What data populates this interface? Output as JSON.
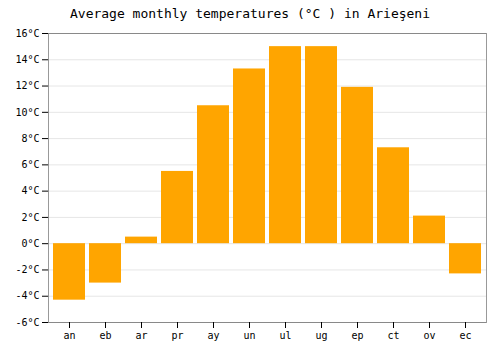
{
  "chart_data": {
    "type": "bar",
    "title": "Average monthly temperatures (°C ) in Arieşeni",
    "categories": [
      "an",
      "eb",
      "ar",
      "pr",
      "ay",
      "un",
      "ul",
      "ug",
      "ep",
      "ct",
      "ov",
      "ec"
    ],
    "values": [
      -4.3,
      -3.0,
      0.5,
      5.5,
      10.5,
      13.3,
      15.0,
      15.0,
      11.9,
      7.3,
      2.1,
      -2.3
    ],
    "color": "#FFA500",
    "ylim": [
      -6,
      16
    ],
    "yticks": [
      {
        "value": -6,
        "label": "-6°C"
      },
      {
        "value": -4,
        "label": "-4°C"
      },
      {
        "value": -2,
        "label": "-2°C"
      },
      {
        "value": 0,
        "label": "0°C"
      },
      {
        "value": 2,
        "label": "2°C"
      },
      {
        "value": 4,
        "label": "4°C"
      },
      {
        "value": 6,
        "label": "6°C"
      },
      {
        "value": 8,
        "label": "8°C"
      },
      {
        "value": 10,
        "label": "10°C"
      },
      {
        "value": 12,
        "label": "12°C"
      },
      {
        "value": 14,
        "label": "14°C"
      },
      {
        "value": 16,
        "label": "16°C"
      }
    ],
    "grid": true
  }
}
